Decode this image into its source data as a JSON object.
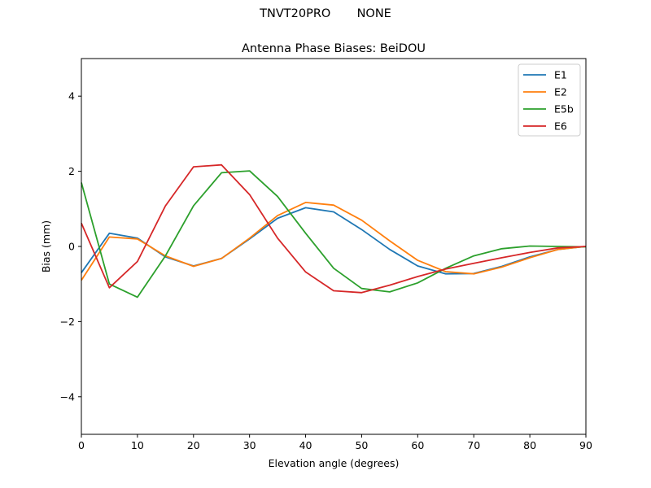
{
  "figure": {
    "suptitle": "TNVT20PRO       NONE"
  },
  "chart_data": {
    "type": "line",
    "title": "Antenna Phase Biases: BeiDOU",
    "xlabel": "Elevation angle (degrees)",
    "ylabel": "Bias (mm)",
    "xlim": [
      0,
      90
    ],
    "ylim": [
      -5,
      5
    ],
    "xticks": [
      0,
      10,
      20,
      30,
      40,
      50,
      60,
      70,
      80,
      90
    ],
    "yticks": [
      -4,
      -2,
      0,
      2,
      4
    ],
    "grid": false,
    "legend_position": "top-right",
    "x": [
      0,
      5,
      10,
      15,
      20,
      25,
      30,
      35,
      40,
      45,
      50,
      55,
      60,
      65,
      70,
      75,
      80,
      85,
      90
    ],
    "series": [
      {
        "name": "E1",
        "color": "#1f77b4",
        "values": [
          -0.7,
          0.35,
          0.22,
          -0.28,
          -0.52,
          -0.32,
          0.2,
          0.75,
          1.03,
          0.92,
          0.45,
          -0.08,
          -0.52,
          -0.73,
          -0.72,
          -0.53,
          -0.28,
          -0.08,
          0.0
        ]
      },
      {
        "name": "E2",
        "color": "#ff7f0e",
        "values": [
          -0.9,
          0.25,
          0.2,
          -0.25,
          -0.53,
          -0.32,
          0.22,
          0.82,
          1.17,
          1.1,
          0.7,
          0.15,
          -0.37,
          -0.67,
          -0.73,
          -0.55,
          -0.3,
          -0.08,
          0.0
        ]
      },
      {
        "name": "E5b",
        "color": "#2ca02c",
        "values": [
          1.7,
          -1.0,
          -1.35,
          -0.25,
          1.08,
          1.96,
          2.01,
          1.33,
          0.35,
          -0.58,
          -1.12,
          -1.21,
          -0.97,
          -0.58,
          -0.25,
          -0.06,
          0.01,
          0.0,
          -0.01
        ]
      },
      {
        "name": "E6",
        "color": "#d62728",
        "values": [
          0.62,
          -1.1,
          -0.4,
          1.08,
          2.12,
          2.17,
          1.38,
          0.22,
          -0.68,
          -1.18,
          -1.23,
          -1.03,
          -0.8,
          -0.6,
          -0.45,
          -0.3,
          -0.16,
          -0.04,
          0.0
        ]
      }
    ]
  }
}
